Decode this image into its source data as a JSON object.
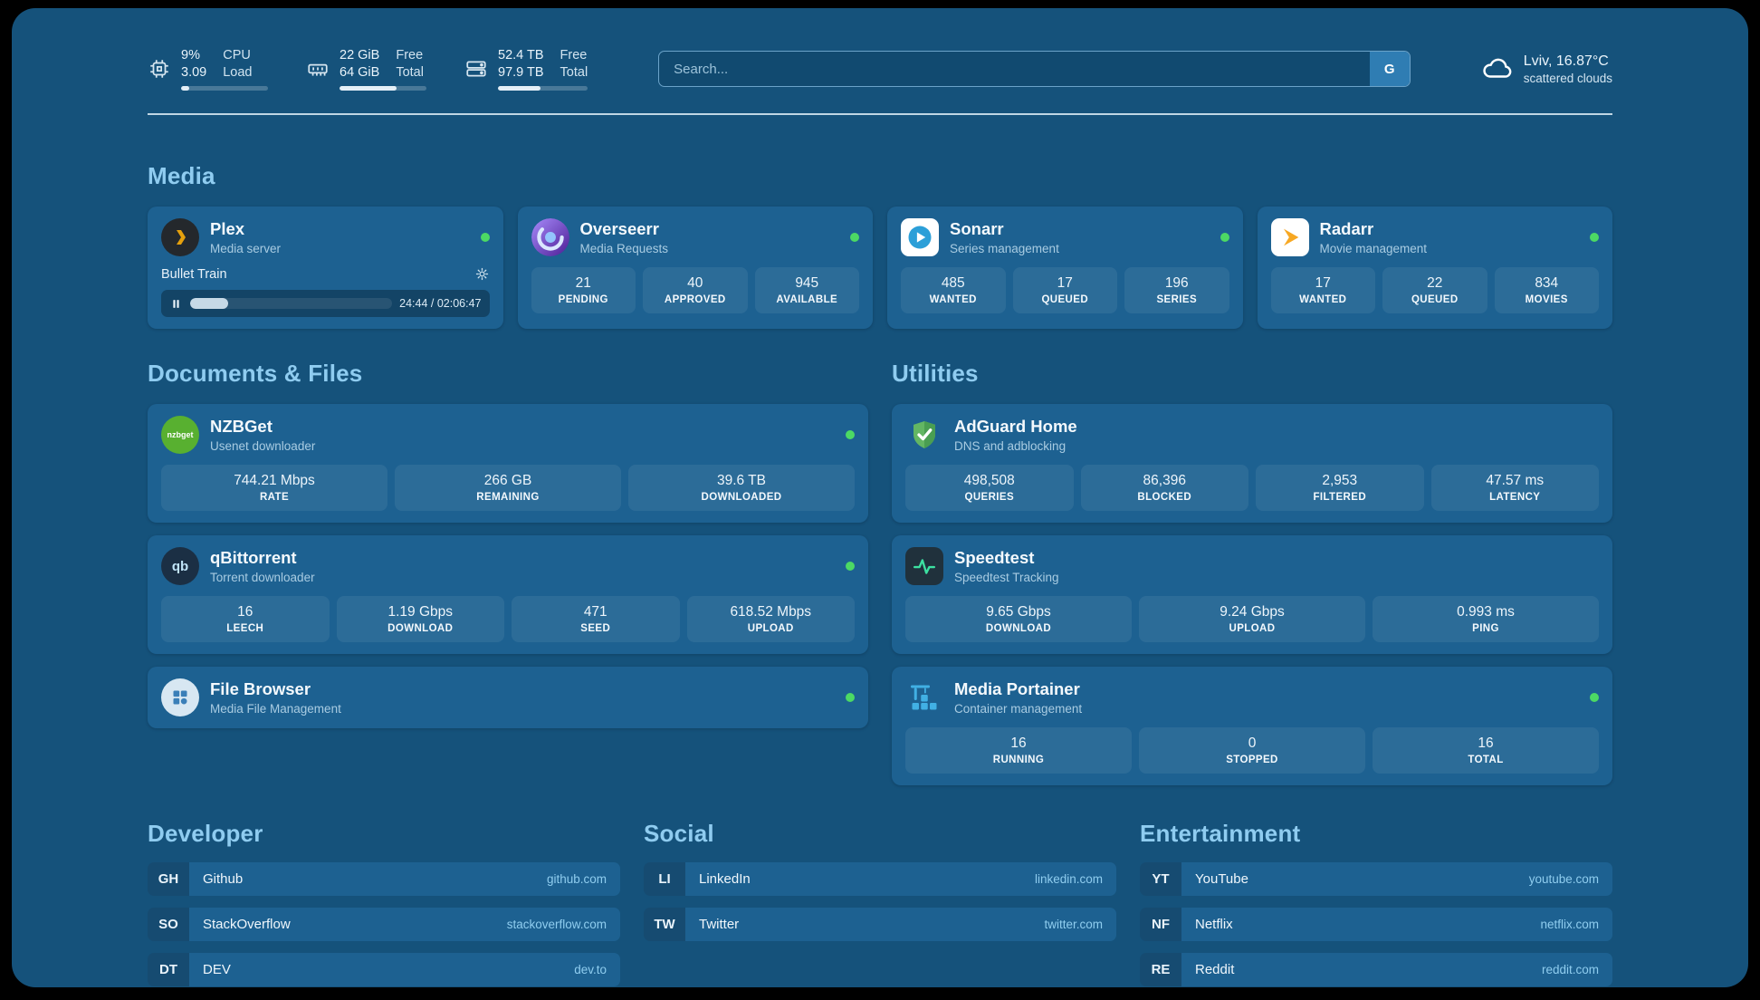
{
  "colors": {
    "background": "#15527b",
    "card": "#1d6191",
    "accent": "#8fccf0",
    "status_online": "#4cd964"
  },
  "topbar": {
    "cpu": {
      "value": "9%",
      "value2": "3.09",
      "label": "CPU",
      "label2": "Load",
      "percent": 9
    },
    "memory": {
      "value": "22 GiB",
      "value2": "64 GiB",
      "label": "Free",
      "label2": "Total",
      "percent": 66
    },
    "disk": {
      "value": "52.4 TB",
      "value2": "97.9 TB",
      "label": "Free",
      "label2": "Total",
      "percent": 47
    },
    "search": {
      "placeholder": "Search...",
      "provider": "G"
    },
    "weather": {
      "location": "Lviv, 16.87°C",
      "condition": "scattered clouds"
    }
  },
  "sections": {
    "media": {
      "title": "Media",
      "plex": {
        "name": "Plex",
        "desc": "Media server",
        "online": true,
        "now_playing": {
          "title": "Bullet Train",
          "time": "24:44 / 02:06:47",
          "progress_percent": 19
        }
      },
      "overseerr": {
        "name": "Overseerr",
        "desc": "Media Requests",
        "online": true,
        "stats": [
          {
            "value": "21",
            "label": "PENDING"
          },
          {
            "value": "40",
            "label": "APPROVED"
          },
          {
            "value": "945",
            "label": "AVAILABLE"
          }
        ]
      },
      "sonarr": {
        "name": "Sonarr",
        "desc": "Series management",
        "online": true,
        "stats": [
          {
            "value": "485",
            "label": "WANTED"
          },
          {
            "value": "17",
            "label": "QUEUED"
          },
          {
            "value": "196",
            "label": "SERIES"
          }
        ]
      },
      "radarr": {
        "name": "Radarr",
        "desc": "Movie management",
        "online": true,
        "stats": [
          {
            "value": "17",
            "label": "WANTED"
          },
          {
            "value": "22",
            "label": "QUEUED"
          },
          {
            "value": "834",
            "label": "MOVIES"
          }
        ]
      }
    },
    "documents": {
      "title": "Documents & Files",
      "nzbget": {
        "name": "NZBGet",
        "desc": "Usenet downloader",
        "online": true,
        "icon_text": "nzbget",
        "stats": [
          {
            "value": "744.21 Mbps",
            "label": "RATE"
          },
          {
            "value": "266 GB",
            "label": "REMAINING"
          },
          {
            "value": "39.6 TB",
            "label": "DOWNLOADED"
          }
        ]
      },
      "qbittorrent": {
        "name": "qBittorrent",
        "desc": "Torrent downloader",
        "online": true,
        "icon_text": "qb",
        "stats": [
          {
            "value": "16",
            "label": "LEECH"
          },
          {
            "value": "1.19 Gbps",
            "label": "DOWNLOAD"
          },
          {
            "value": "471",
            "label": "SEED"
          },
          {
            "value": "618.52 Mbps",
            "label": "UPLOAD"
          }
        ]
      },
      "filebrowser": {
        "name": "File Browser",
        "desc": "Media File Management",
        "online": true
      }
    },
    "utilities": {
      "title": "Utilities",
      "adguard": {
        "name": "AdGuard Home",
        "desc": "DNS and adblocking",
        "online": false,
        "stats": [
          {
            "value": "498,508",
            "label": "QUERIES"
          },
          {
            "value": "86,396",
            "label": "BLOCKED"
          },
          {
            "value": "2,953",
            "label": "FILTERED"
          },
          {
            "value": "47.57 ms",
            "label": "LATENCY"
          }
        ]
      },
      "speedtest": {
        "name": "Speedtest",
        "desc": "Speedtest Tracking",
        "online": false,
        "stats": [
          {
            "value": "9.65 Gbps",
            "label": "DOWNLOAD"
          },
          {
            "value": "9.24 Gbps",
            "label": "UPLOAD"
          },
          {
            "value": "0.993 ms",
            "label": "PING"
          }
        ]
      },
      "portainer": {
        "name": "Media Portainer",
        "desc": "Container management",
        "online": true,
        "stats": [
          {
            "value": "16",
            "label": "RUNNING"
          },
          {
            "value": "0",
            "label": "STOPPED"
          },
          {
            "value": "16",
            "label": "TOTAL"
          }
        ]
      }
    },
    "developer": {
      "title": "Developer",
      "items": [
        {
          "abbr": "GH",
          "name": "Github",
          "url": "github.com"
        },
        {
          "abbr": "SO",
          "name": "StackOverflow",
          "url": "stackoverflow.com"
        },
        {
          "abbr": "DT",
          "name": "DEV",
          "url": "dev.to"
        }
      ]
    },
    "social": {
      "title": "Social",
      "items": [
        {
          "abbr": "LI",
          "name": "LinkedIn",
          "url": "linkedin.com"
        },
        {
          "abbr": "TW",
          "name": "Twitter",
          "url": "twitter.com"
        }
      ]
    },
    "entertainment": {
      "title": "Entertainment",
      "items": [
        {
          "abbr": "YT",
          "name": "YouTube",
          "url": "youtube.com"
        },
        {
          "abbr": "NF",
          "name": "Netflix",
          "url": "netflix.com"
        },
        {
          "abbr": "RE",
          "name": "Reddit",
          "url": "reddit.com"
        }
      ]
    }
  }
}
